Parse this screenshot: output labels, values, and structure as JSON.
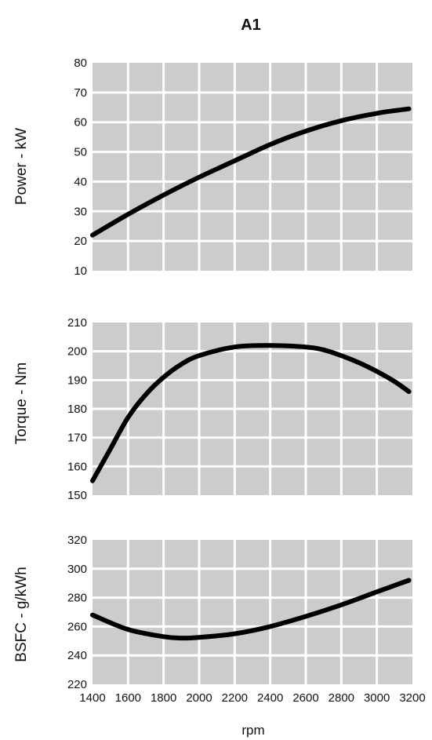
{
  "title": "A1",
  "xlabel": "rpm",
  "colors": {
    "plot_background": "#cccccc",
    "gridline": "#ffffff",
    "curve": "#000000"
  },
  "chart_data": [
    {
      "type": "line",
      "ylabel": "Power - kW",
      "xlim": [
        1400,
        3200
      ],
      "ylim": [
        10,
        80
      ],
      "yticks": [
        "10",
        "20",
        "30",
        "40",
        "50",
        "60",
        "70",
        "80"
      ],
      "grid": true,
      "series": [
        {
          "x": [
            1400,
            1600,
            1800,
            2000,
            2200,
            2400,
            2600,
            2800,
            3000,
            3180
          ],
          "values": [
            22,
            29,
            35.5,
            41.5,
            47,
            52.5,
            57,
            60.5,
            63,
            64.5
          ]
        }
      ]
    },
    {
      "type": "line",
      "ylabel": "Torque - Nm",
      "xlim": [
        1400,
        3200
      ],
      "ylim": [
        150,
        210
      ],
      "yticks": [
        "150",
        "160",
        "170",
        "180",
        "190",
        "200",
        "210"
      ],
      "grid": true,
      "series": [
        {
          "x": [
            1400,
            1500,
            1600,
            1700,
            1800,
            1900,
            2000,
            2200,
            2400,
            2600,
            2700,
            2800,
            2900,
            3000,
            3100,
            3180
          ],
          "values": [
            155,
            166,
            177,
            185,
            191,
            195.5,
            198.5,
            201.5,
            202,
            201.5,
            200.5,
            198.5,
            196,
            193,
            189.5,
            186
          ]
        }
      ]
    },
    {
      "type": "line",
      "ylabel": "BSFC - g/kWh",
      "xlim": [
        1400,
        3200
      ],
      "ylim": [
        220,
        320
      ],
      "yticks": [
        "220",
        "240",
        "260",
        "280",
        "300",
        "320"
      ],
      "xticks": [
        "1400",
        "1600",
        "1800",
        "2000",
        "2200",
        "2400",
        "2600",
        "2800",
        "3000",
        "3200"
      ],
      "grid": true,
      "series": [
        {
          "x": [
            1400,
            1600,
            1800,
            1900,
            2000,
            2200,
            2400,
            2600,
            2800,
            3000,
            3180
          ],
          "values": [
            268,
            258,
            253,
            252,
            252.5,
            255,
            260,
            267,
            275,
            284,
            292
          ]
        }
      ]
    }
  ]
}
